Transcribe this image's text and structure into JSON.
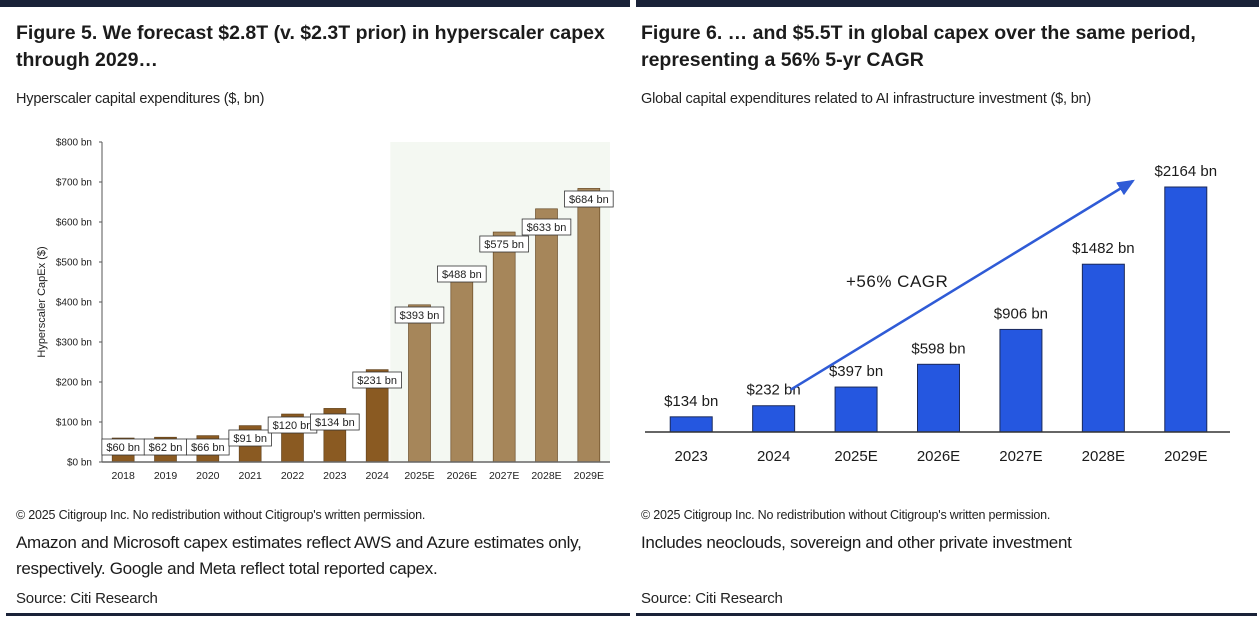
{
  "left": {
    "title": "Figure 5. We forecast $2.8T (v. $2.3T prior) in hyperscaler capex through 2029…",
    "subtitle": "Hyperscaler capital expenditures ($, bn)",
    "copyright": "© 2025 Citigroup Inc. No redistribution without Citigroup's written permission.",
    "note": "Amazon and Microsoft capex estimates reflect AWS and Azure estimates only, respectively. Google and Meta reflect total reported capex.",
    "source": "Source: Citi Research"
  },
  "right": {
    "title": "Figure 6. … and $5.5T in global capex over the same period, representing a 56% 5-yr CAGR",
    "subtitle": "Global capital expenditures related to AI infrastructure investment ($, bn)",
    "copyright": "© 2025 Citigroup Inc. No redistribution without Citigroup's written permission.",
    "note": "Includes neoclouds, sovereign and other private investment",
    "source": "Source: Citi Research"
  },
  "chart_data": [
    {
      "type": "bar",
      "title": "Hyperscaler capital expenditures ($, bn)",
      "xlabel": "",
      "ylabel": "Hyperscaler CapEx ($)",
      "categories": [
        "2018",
        "2019",
        "2020",
        "2021",
        "2022",
        "2023",
        "2024",
        "2025E",
        "2026E",
        "2027E",
        "2028E",
        "2029E"
      ],
      "values": [
        60,
        62,
        66,
        91,
        120,
        134,
        231,
        393,
        488,
        575,
        633,
        684
      ],
      "data_labels": [
        "$60 bn",
        "$62 bn",
        "$66 bn",
        "$91 bn",
        "$120 bn",
        "$134 bn",
        "$231 bn",
        "$393 bn",
        "$488 bn",
        "$575 bn",
        "$633 bn",
        "$684 bn"
      ],
      "ylim": [
        0,
        800
      ],
      "yticks": [
        0,
        100,
        200,
        300,
        400,
        500,
        600,
        700,
        800
      ],
      "ytick_labels": [
        "$0 bn",
        "$100 bn",
        "$200 bn",
        "$300 bn",
        "$400 bn",
        "$500 bn",
        "$600 bn",
        "$700 bn",
        "$800 bn"
      ],
      "forecast_shaded_from": "2025E",
      "colors": {
        "actual": "#8a5a22",
        "forecast": "#a6865a",
        "shade": "#f4f8f2"
      },
      "grid": false
    },
    {
      "type": "bar",
      "title": "Global capital expenditures related to AI infrastructure investment ($, bn)",
      "xlabel": "",
      "ylabel": "",
      "categories": [
        "2023",
        "2024",
        "2025E",
        "2026E",
        "2027E",
        "2028E",
        "2029E"
      ],
      "values": [
        134,
        232,
        397,
        598,
        906,
        1482,
        2164
      ],
      "data_labels": [
        "$134 bn",
        "$232 bn",
        "$397 bn",
        "$598 bn",
        "$906 bn",
        "$1482 bn",
        "$2164 bn"
      ],
      "ylim": [
        0,
        2164
      ],
      "annotation": {
        "text": "+56% CAGR",
        "arrow_from": "2024",
        "arrow_to": "2029E"
      },
      "colors": {
        "bar": "#2557e0",
        "arrow": "#2f5bd6"
      },
      "grid": false
    }
  ]
}
